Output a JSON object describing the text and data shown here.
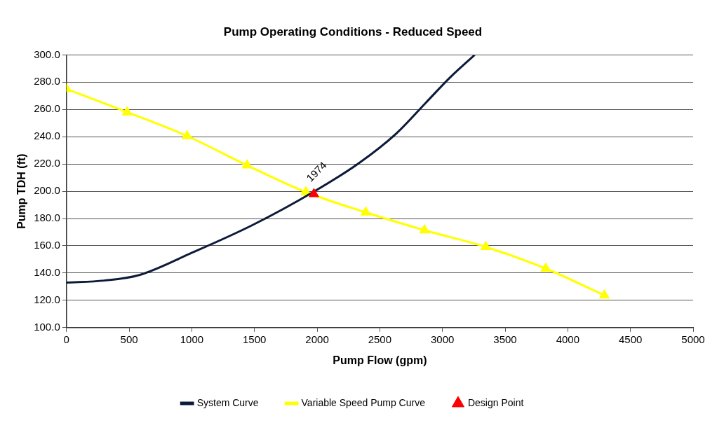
{
  "chart_data": {
    "type": "line",
    "title": "Pump Operating Conditions - Reduced Speed",
    "xlabel": "Pump Flow (gpm)",
    "ylabel": "Pump TDH (ft)",
    "xlim": [
      0,
      5000
    ],
    "xticks": [
      0,
      500,
      1000,
      1500,
      2000,
      2500,
      3000,
      3500,
      4000,
      4500,
      5000
    ],
    "ylim": [
      100,
      300
    ],
    "yticks": [
      {
        "value": 100,
        "label": "100.0"
      },
      {
        "value": 120,
        "label": "120.0"
      },
      {
        "value": 140,
        "label": "140.0"
      },
      {
        "value": 160,
        "label": "160.0"
      },
      {
        "value": 180,
        "label": "180.0"
      },
      {
        "value": 200,
        "label": "200.0"
      },
      {
        "value": 220,
        "label": "220.0"
      },
      {
        "value": 240,
        "label": "240.0"
      },
      {
        "value": 260,
        "label": "260.0"
      },
      {
        "value": 280,
        "label": "280.0"
      },
      {
        "value": 300,
        "label": "300.0"
      }
    ],
    "grid": "y",
    "legend": "bottom",
    "series": [
      {
        "name": "System Curve",
        "color": "#0d1a3a",
        "marker": "none",
        "x": [
          0,
          300,
          586,
          992,
          1480,
          1968,
          2339,
          2632,
          2866,
          3062,
          3257
        ],
        "values": [
          133,
          134.5,
          138.7,
          154.5,
          175,
          199.4,
          221,
          242.4,
          264.8,
          283.6,
          300
        ]
      },
      {
        "name": "Variable Speed Pump Curve",
        "color": "#ffff00",
        "marker": "triangle",
        "x": [
          0,
          484,
          963,
          1441,
          1910,
          2388,
          2857,
          3345,
          3824,
          4292
        ],
        "values": [
          275,
          258,
          240.5,
          219,
          199.4,
          184.5,
          171.4,
          159.2,
          143.3,
          123.7
        ]
      },
      {
        "name": "Design Point",
        "type": "scatter",
        "color": "#ff0000",
        "marker": "triangle",
        "x": [
          1974
        ],
        "values": [
          198
        ]
      }
    ],
    "annotations": [
      {
        "text": "1974",
        "x": 1974,
        "y": 198
      }
    ]
  }
}
